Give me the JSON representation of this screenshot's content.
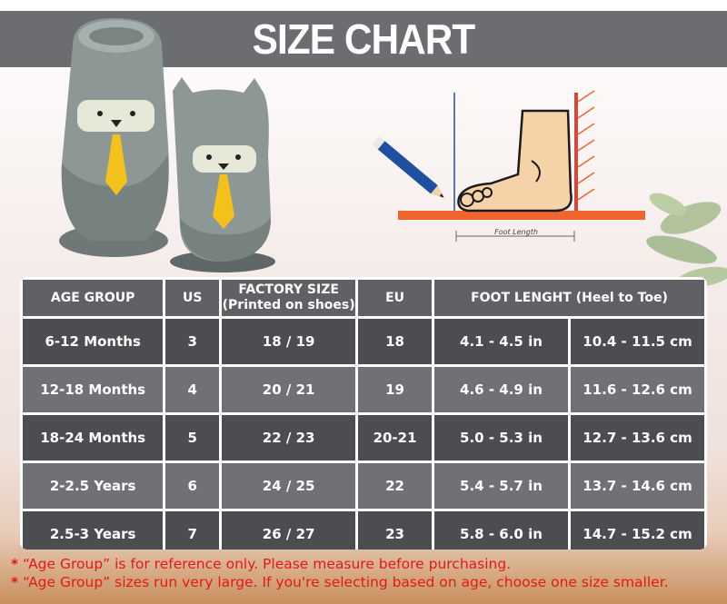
{
  "header": {
    "title": "SIZE CHART"
  },
  "diagram": {
    "foot_length_label": "Foot Length"
  },
  "table": {
    "headers": {
      "age_group": "AGE GROUP",
      "us": "US",
      "factory_size_line1": "FACTORY SIZE",
      "factory_size_line2": "(Printed on shoes)",
      "eu": "EU",
      "foot_length": "FOOT LENGHT (Heel to Toe)"
    },
    "rows": [
      {
        "age": "6-12 Months",
        "us": "3",
        "factory": "18 / 19",
        "eu": "18",
        "inches": "4.1 - 4.5 in",
        "cm": "10.4 - 11.5 cm"
      },
      {
        "age": "12-18 Months",
        "us": "4",
        "factory": "20 / 21",
        "eu": "19",
        "inches": "4.6 - 4.9 in",
        "cm": "11.6 - 12.6 cm"
      },
      {
        "age": "18-24 Months",
        "us": "5",
        "factory": "22 / 23",
        "eu": "20-21",
        "inches": "5.0 - 5.3 in",
        "cm": "12.7 - 13.6 cm"
      },
      {
        "age": "2-2.5 Years",
        "us": "6",
        "factory": "24 / 25",
        "eu": "22",
        "inches": "5.4 - 5.7 in",
        "cm": "13.7 - 14.6 cm"
      },
      {
        "age": "2.5-3 Years",
        "us": "7",
        "factory": "26 / 27",
        "eu": "23",
        "inches": "5.8 - 6.0 in",
        "cm": "14.7 - 15.2 cm"
      }
    ]
  },
  "notes": {
    "star": "*",
    "line1": "“Age Group” is for reference only. Please measure before purchasing.",
    "line2": "“Age Group” sizes run very large. If you're selecting based on age, choose one size smaller."
  },
  "colors": {
    "header_band": "#6b6d70",
    "row_dark": "#4c4d50",
    "row_light": "#6f7175",
    "note_red": "#e01a14",
    "sock_grey": "#8d9796",
    "tie_yellow": "#f2c21b",
    "ruler_orange": "#f0642d",
    "pencil_blue": "#1f4fa0"
  }
}
